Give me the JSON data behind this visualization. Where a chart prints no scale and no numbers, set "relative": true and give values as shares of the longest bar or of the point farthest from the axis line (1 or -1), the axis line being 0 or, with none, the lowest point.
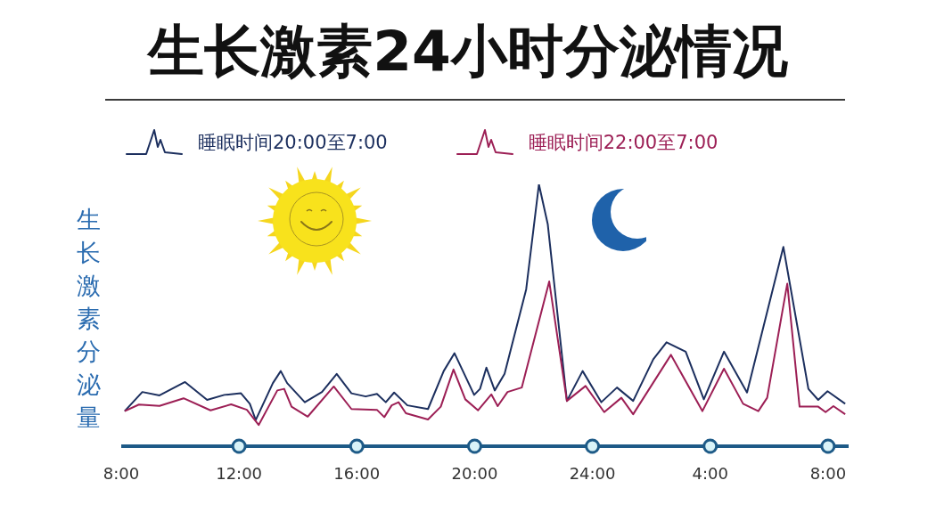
{
  "chart_data": {
    "type": "line",
    "title": "生长激素24小时分泌情况",
    "ylabel": "生长激素分泌量",
    "relative": true,
    "legend": "top left",
    "xlim": [
      "2000-01-01T08:00",
      "2000-01-02T08:42"
    ],
    "xticks": [
      {
        "value": "2000-01-01T08:00",
        "label": "8:00"
      },
      {
        "value": "2000-01-01T12:00",
        "label": "12:00"
      },
      {
        "value": "2000-01-01T16:00",
        "label": "16:00"
      },
      {
        "value": "2000-01-01T20:00",
        "label": "20:00"
      },
      {
        "value": "2000-01-02T00:00",
        "label": "24:00"
      },
      {
        "value": "2000-01-02T04:00",
        "label": "4:00"
      },
      {
        "value": "2000-01-02T08:00",
        "label": "8:00"
      }
    ],
    "series": [
      {
        "name": "睡眠时间20:00至7:00",
        "color": "#1c2f5e",
        "x": [
          "2000-01-01T08:07",
          "2000-01-01T08:43",
          "2000-01-01T09:18",
          "2000-01-01T10:10",
          "2000-01-01T10:55",
          "2000-01-01T11:30",
          "2000-01-01T12:04",
          "2000-01-01T12:22",
          "2000-01-01T12:34",
          "2000-01-01T13:09",
          "2000-01-01T13:25",
          "2000-01-01T13:38",
          "2000-01-01T14:14",
          "2000-01-01T14:49",
          "2000-01-01T15:19",
          "2000-01-01T15:49",
          "2000-01-01T16:18",
          "2000-01-01T16:41",
          "2000-01-01T16:59",
          "2000-01-01T17:16",
          "2000-01-01T17:43",
          "2000-01-01T18:25",
          "2000-01-01T18:57",
          "2000-01-01T19:19",
          "2000-01-01T19:59",
          "2000-01-01T20:11",
          "2000-01-01T20:24",
          "2000-01-01T20:41",
          "2000-01-01T21:01",
          "2000-01-01T21:45",
          "2000-01-01T22:11",
          "2000-01-01T22:29",
          "2000-01-01T23:08",
          "2000-01-01T23:40",
          "2000-01-02T00:18",
          "2000-01-02T00:50",
          "2000-01-02T01:23",
          "2000-01-02T02:04",
          "2000-01-02T02:31",
          "2000-01-02T03:10",
          "2000-01-02T03:47",
          "2000-01-02T04:28",
          "2000-01-02T05:15",
          "2000-01-02T06:29",
          "2000-01-02T07:20",
          "2000-01-02T07:40",
          "2000-01-02T07:59",
          "2000-01-02T08:35"
        ],
        "values": [
          0.134,
          0.207,
          0.194,
          0.245,
          0.177,
          0.196,
          0.202,
          0.162,
          0.1,
          0.241,
          0.287,
          0.241,
          0.168,
          0.207,
          0.276,
          0.202,
          0.19,
          0.2,
          0.168,
          0.205,
          0.156,
          0.142,
          0.287,
          0.355,
          0.196,
          0.219,
          0.3,
          0.213,
          0.276,
          0.599,
          1,
          0.848,
          0.173,
          0.287,
          0.168,
          0.224,
          0.173,
          0.332,
          0.397,
          0.361,
          0.179,
          0.361,
          0.205,
          0.761,
          0.219,
          0.177,
          0.21,
          0.162
        ]
      },
      {
        "name": "睡眠时间22:00至7:00",
        "color": "#9c1f55",
        "x": [
          "2000-01-01T08:07",
          "2000-01-01T08:36",
          "2000-01-01T09:18",
          "2000-01-01T10:07",
          "2000-01-01T11:02",
          "2000-01-01T11:44",
          "2000-01-01T12:16",
          "2000-01-01T12:40",
          "2000-01-01T13:18",
          "2000-01-01T13:32",
          "2000-01-01T13:47",
          "2000-01-01T14:20",
          "2000-01-01T15:13",
          "2000-01-01T15:49",
          "2000-01-01T16:41",
          "2000-01-01T16:56",
          "2000-01-01T17:11",
          "2000-01-01T17:25",
          "2000-01-01T17:40",
          "2000-01-01T18:25",
          "2000-01-01T18:51",
          "2000-01-01T19:17",
          "2000-01-01T19:41",
          "2000-01-01T20:07",
          "2000-01-01T20:34",
          "2000-01-01T20:47",
          "2000-01-01T21:07",
          "2000-01-01T21:36",
          "2000-01-01T22:32",
          "2000-01-01T23:08",
          "2000-01-01T23:46",
          "2000-01-02T00:24",
          "2000-01-02T00:59",
          "2000-01-02T01:23",
          "2000-01-02T02:40",
          "2000-01-02T03:44",
          "2000-01-02T04:28",
          "2000-01-02T05:07",
          "2000-01-02T05:38",
          "2000-01-02T05:56",
          "2000-01-02T06:37",
          "2000-01-02T07:02",
          "2000-01-02T07:40",
          "2000-01-02T07:55",
          "2000-01-02T08:11",
          "2000-01-02T08:35"
        ],
        "values": [
          0.134,
          0.159,
          0.154,
          0.183,
          0.137,
          0.16,
          0.139,
          0.081,
          0.213,
          0.219,
          0.151,
          0.113,
          0.228,
          0.142,
          0.139,
          0.111,
          0.156,
          0.168,
          0.126,
          0.102,
          0.151,
          0.293,
          0.179,
          0.137,
          0.198,
          0.153,
          0.207,
          0.224,
          0.629,
          0.173,
          0.23,
          0.13,
          0.185,
          0.122,
          0.349,
          0.134,
          0.296,
          0.162,
          0.134,
          0.185,
          0.621,
          0.151,
          0.151,
          0.13,
          0.153,
          0.122
        ]
      }
    ]
  }
}
